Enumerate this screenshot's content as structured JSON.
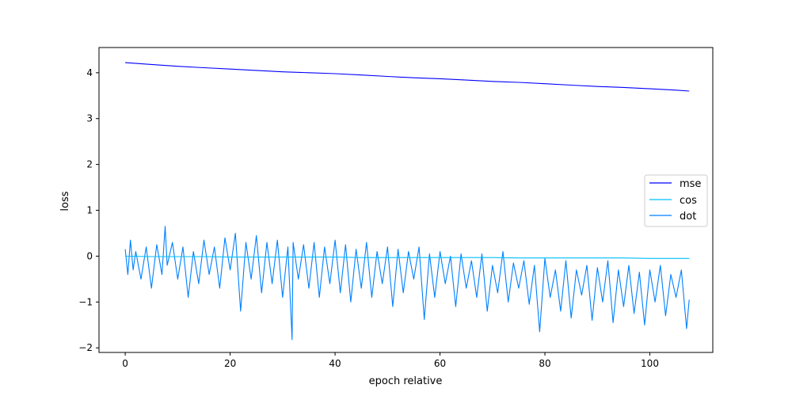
{
  "chart_data": {
    "type": "line",
    "title": "",
    "xlabel": "epoch relative",
    "ylabel": "loss",
    "xlim": [
      -5,
      112
    ],
    "ylim": [
      -2.1,
      4.55
    ],
    "xticks": [
      0,
      20,
      40,
      60,
      80,
      100
    ],
    "yticks": [
      -2,
      -1,
      0,
      1,
      2,
      3,
      4
    ],
    "xtick_labels": [
      "0",
      "20",
      "40",
      "60",
      "80",
      "100"
    ],
    "ytick_labels": [
      "−2",
      "−1",
      "0",
      "1",
      "2",
      "3",
      "4"
    ],
    "grid": false,
    "legend_position": "center-right",
    "series": [
      {
        "name": "mse",
        "color": "#0000ff",
        "x": [
          0,
          5,
          10,
          15,
          20,
          25,
          30,
          35,
          40,
          45,
          50,
          55,
          60,
          65,
          70,
          75,
          80,
          85,
          90,
          95,
          100,
          105,
          107.5
        ],
        "values": [
          4.22,
          4.18,
          4.14,
          4.11,
          4.08,
          4.05,
          4.02,
          4.0,
          3.98,
          3.95,
          3.92,
          3.89,
          3.87,
          3.84,
          3.81,
          3.79,
          3.76,
          3.73,
          3.7,
          3.68,
          3.65,
          3.62,
          3.6
        ]
      },
      {
        "name": "cos",
        "color": "#00bfff",
        "x": [
          0,
          5,
          10,
          15,
          20,
          25,
          30,
          35,
          40,
          45,
          50,
          55,
          60,
          65,
          70,
          75,
          80,
          85,
          90,
          95,
          100,
          105,
          107.5
        ],
        "values": [
          0.0,
          -0.01,
          -0.01,
          -0.01,
          -0.02,
          -0.02,
          -0.02,
          -0.02,
          -0.02,
          -0.03,
          -0.03,
          -0.03,
          -0.03,
          -0.03,
          -0.03,
          -0.04,
          -0.04,
          -0.04,
          -0.04,
          -0.04,
          -0.05,
          -0.05,
          -0.05
        ]
      },
      {
        "name": "dot",
        "color": "#0080ff",
        "x": [
          0,
          0.5,
          1,
          1.5,
          2,
          3,
          4,
          5,
          6,
          7,
          7.6,
          8,
          9,
          10,
          11,
          12,
          13,
          14,
          15,
          16,
          17,
          18,
          19,
          20,
          21,
          22,
          23,
          24,
          25,
          26,
          27,
          28,
          29,
          30,
          31,
          31.8,
          32,
          33,
          34,
          35,
          36,
          37,
          38,
          39,
          40,
          41,
          42,
          43,
          44,
          45,
          46,
          47,
          48,
          49,
          50,
          51,
          52,
          53,
          54,
          55,
          56,
          57,
          58,
          59,
          60,
          61,
          62,
          63,
          64,
          65,
          66,
          67,
          68,
          69,
          70,
          71,
          72,
          73,
          74,
          75,
          76,
          77,
          78,
          79,
          80,
          81,
          82,
          83,
          84,
          85,
          86,
          87,
          88,
          89,
          90,
          91,
          92,
          93,
          94,
          95,
          96,
          97,
          98,
          99,
          100,
          101,
          102,
          103,
          104,
          105,
          106,
          107,
          107.5
        ],
        "values": [
          0.15,
          -0.4,
          0.35,
          -0.3,
          0.1,
          -0.5,
          0.2,
          -0.7,
          0.25,
          -0.4,
          0.65,
          -0.2,
          0.3,
          -0.5,
          0.2,
          -0.9,
          0.1,
          -0.6,
          0.35,
          -0.4,
          0.2,
          -0.7,
          0.4,
          -0.3,
          0.5,
          -1.2,
          0.3,
          -0.5,
          0.45,
          -0.8,
          0.3,
          -0.6,
          0.35,
          -0.9,
          0.2,
          -1.82,
          0.3,
          -0.5,
          0.25,
          -0.7,
          0.3,
          -0.9,
          0.2,
          -0.6,
          0.35,
          -0.8,
          0.25,
          -1.0,
          0.15,
          -0.7,
          0.3,
          -0.9,
          0.1,
          -0.6,
          0.2,
          -1.1,
          0.15,
          -0.8,
          0.1,
          -0.5,
          0.2,
          -1.38,
          0.05,
          -0.9,
          0.1,
          -0.6,
          0.0,
          -1.1,
          0.05,
          -0.7,
          -0.1,
          -0.9,
          0.05,
          -1.2,
          -0.2,
          -0.8,
          0.1,
          -1.0,
          -0.15,
          -0.7,
          -0.1,
          -1.05,
          -0.2,
          -1.65,
          -0.05,
          -0.9,
          -0.3,
          -1.2,
          -0.1,
          -1.35,
          -0.3,
          -0.85,
          -0.2,
          -1.4,
          -0.25,
          -1.0,
          -0.1,
          -1.45,
          -0.3,
          -1.1,
          -0.2,
          -1.25,
          -0.35,
          -1.5,
          -0.3,
          -1.0,
          -0.2,
          -1.3,
          -0.4,
          -0.9,
          -0.3,
          -1.58,
          -0.95
        ]
      }
    ]
  }
}
